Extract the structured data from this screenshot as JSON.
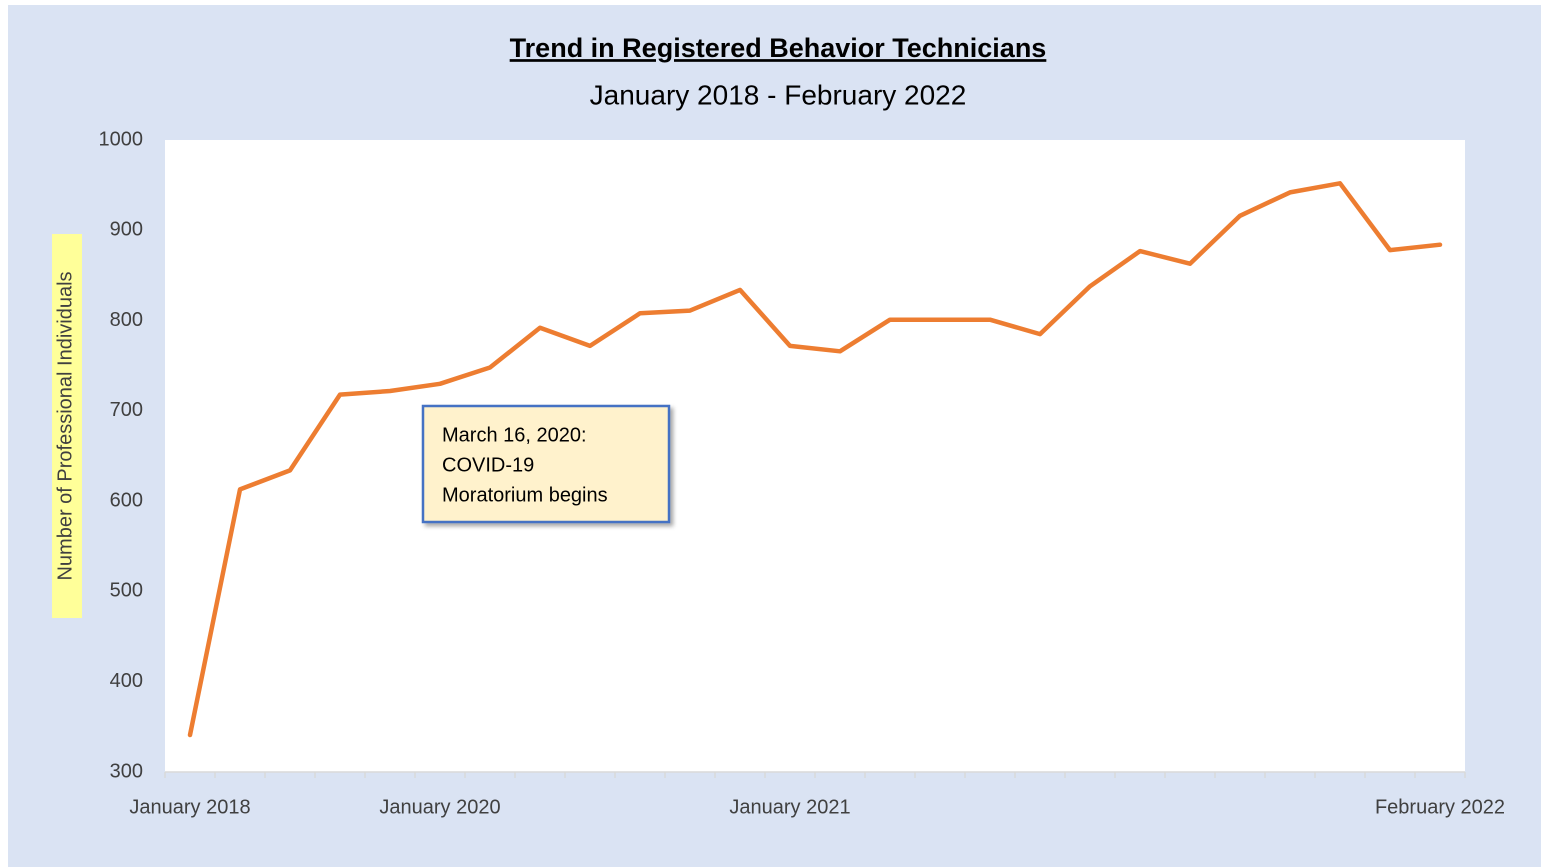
{
  "chart_data": {
    "type": "line",
    "title": "Trend in Registered Behavior Technicians",
    "subtitle": "January 2018 - February 2022",
    "y_label": "Number of Professional Individuals",
    "categories": [
      "January 2018",
      null,
      null,
      null,
      null,
      "January 2020",
      null,
      null,
      null,
      null,
      null,
      null,
      "January 2021",
      null,
      null,
      null,
      null,
      null,
      null,
      null,
      null,
      null,
      null,
      null,
      null,
      "February 2022"
    ],
    "series": [
      {
        "name": "Registered Behavior Technicians",
        "color": "#ed7d31",
        "values": [
          341,
          613,
          634,
          718,
          722,
          730,
          748,
          792,
          772,
          808,
          811,
          834,
          772,
          766,
          801,
          801,
          801,
          785,
          838,
          877,
          863,
          916,
          942,
          952,
          878,
          884
        ]
      }
    ],
    "ylim": [
      300,
      1000
    ],
    "yticks": [
      300,
      400,
      500,
      600,
      700,
      800,
      900,
      1000
    ],
    "grid": false,
    "annotation": {
      "lines": [
        "March 16, 2020:",
        "COVID-19",
        "Moratorium begins"
      ]
    }
  }
}
